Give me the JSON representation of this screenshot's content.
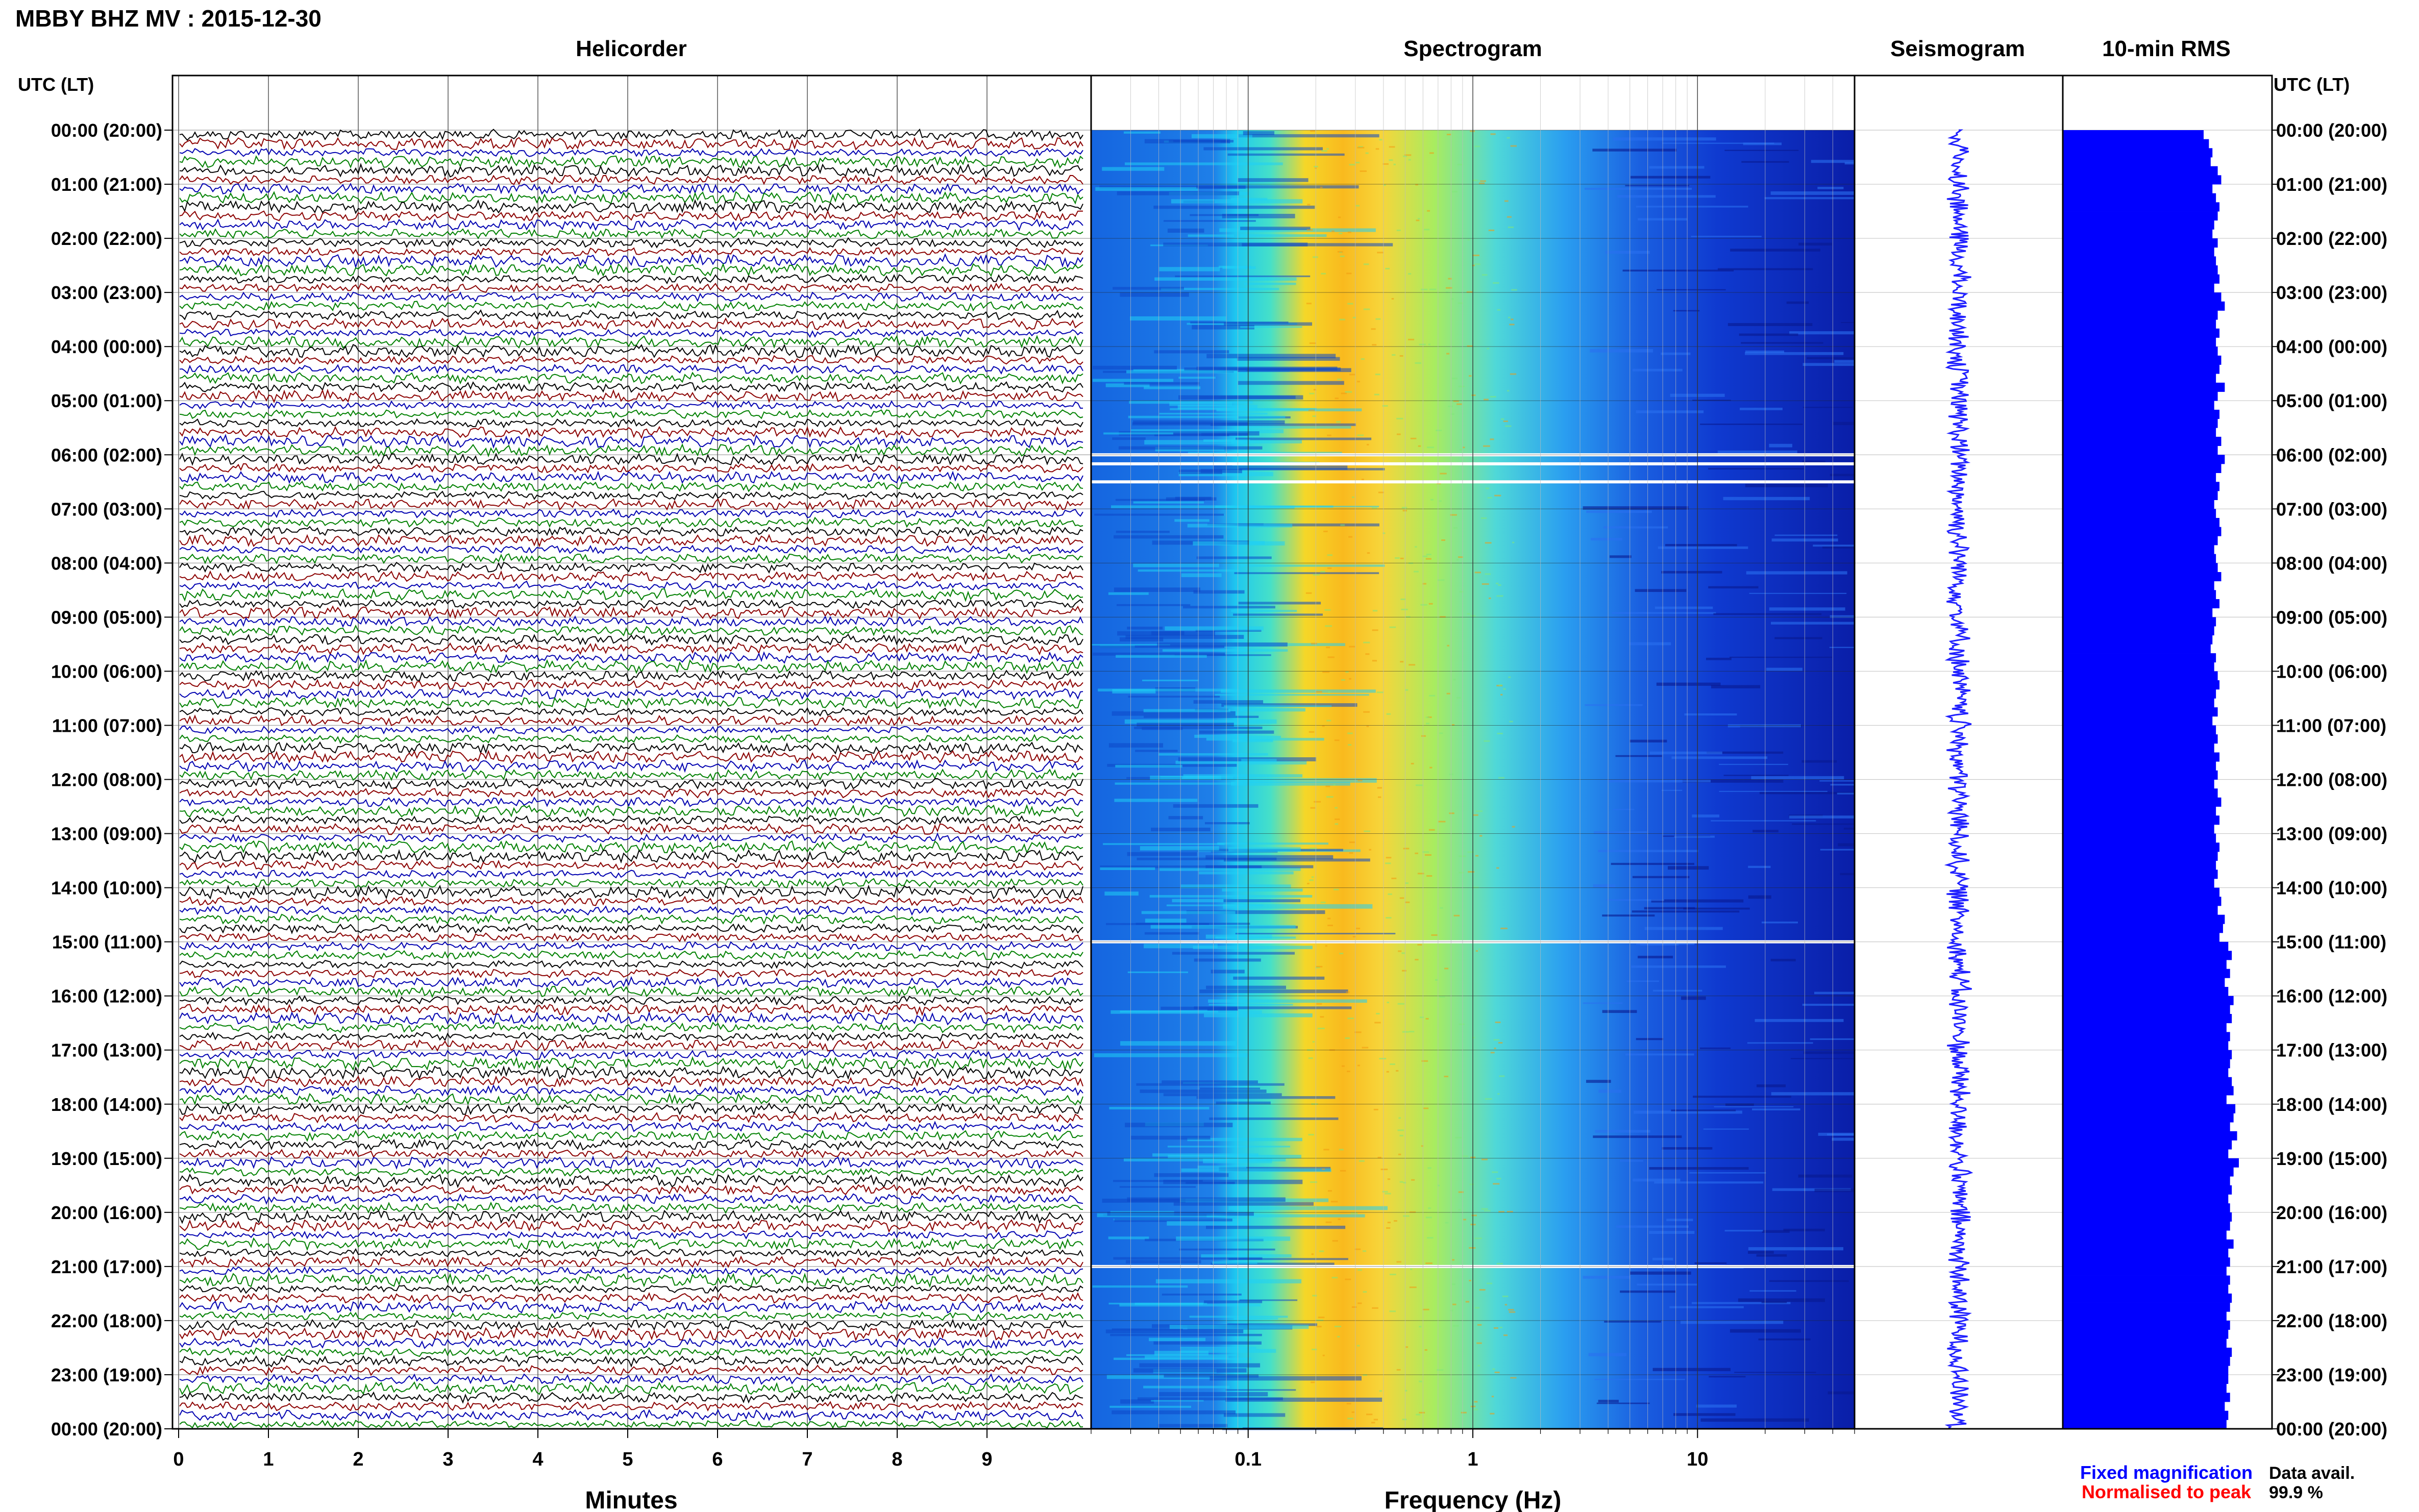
{
  "header": {
    "title": "MBBY BHZ MV : 2015-12-30"
  },
  "panels": {
    "helicorder": "Helicorder",
    "spectrogram": "Spectrogram",
    "seismogram": "Seismogram",
    "rms": "10-min RMS"
  },
  "axis_left_label": "UTC (LT)",
  "axis_right_label": "UTC (LT)",
  "footer": {
    "fixed_magnification": "Fixed magnification",
    "normalised_to_peak": "Normalised to peak",
    "data_avail_label": "Data avail.",
    "data_avail_value": "99.9 %"
  },
  "colors": {
    "trace_cycle": [
      "#000000",
      "#8b0000",
      "#0000b0",
      "#008000"
    ],
    "seismogram": "#1f1fff",
    "rms_bar": "#0000ff",
    "fixed_magnification": "#0000ff",
    "normalised_to_peak": "#ff0000",
    "gap_lines": "#ffffff"
  },
  "icons": {
    "spectrogram_colormap": "jet-colormap"
  },
  "chart_data": [
    {
      "type": "line",
      "title": "Helicorder",
      "xlabel": "Minutes",
      "ylabel": "UTC (LT)",
      "x_ticks": [
        "0",
        "1",
        "2",
        "3",
        "4",
        "5",
        "6",
        "7",
        "8",
        "9"
      ],
      "xlim": [
        0,
        10
      ],
      "y_ticks": [
        "00:00 (20:00)",
        "01:00 (21:00)",
        "02:00 (22:00)",
        "03:00 (23:00)",
        "04:00 (00:00)",
        "05:00 (01:00)",
        "06:00 (02:00)",
        "07:00 (03:00)",
        "08:00 (04:00)",
        "09:00 (05:00)",
        "10:00 (06:00)",
        "11:00 (07:00)",
        "12:00 (08:00)",
        "13:00 (09:00)",
        "14:00 (10:00)",
        "15:00 (11:00)",
        "16:00 (12:00)",
        "17:00 (13:00)",
        "18:00 (14:00)",
        "19:00 (15:00)",
        "20:00 (16:00)",
        "21:00 (17:00)",
        "22:00 (18:00)",
        "23:00 (19:00)",
        "00:00 (20:00)"
      ],
      "traces_per_hour": 6,
      "minutes_per_trace": 10
    },
    {
      "type": "heatmap",
      "title": "Spectrogram",
      "xlabel": "Frequency (Hz)",
      "x_scale": "log",
      "xlim": [
        0.02,
        50
      ],
      "x_ticks": [
        "0.1",
        "1",
        "10"
      ],
      "x_tick_values": [
        0.1,
        1,
        10
      ],
      "colormap": "jet",
      "peak_frequency_hz": 0.35,
      "data_gaps_utc": [
        "06:00",
        "06:10",
        "06:30",
        "15:00",
        "21:00"
      ]
    },
    {
      "type": "line",
      "title": "Seismogram",
      "xlabel": "",
      "ylabel": ""
    },
    {
      "type": "bar",
      "title": "10-min RMS",
      "orientation": "horizontal",
      "interval_minutes": 10,
      "values": [
        0.8,
        0.83,
        0.85,
        0.84,
        0.88,
        0.9,
        0.85,
        0.87,
        0.89,
        0.88,
        0.86,
        0.85,
        0.88,
        0.86,
        0.87,
        0.88,
        0.89,
        0.86,
        0.9,
        0.92,
        0.88,
        0.87,
        0.89,
        0.87,
        0.88,
        0.9,
        0.89,
        0.87,
        0.92,
        0.88,
        0.86,
        0.89,
        0.88,
        0.87,
        0.9,
        0.88,
        0.92,
        0.9,
        0.87,
        0.89,
        0.88,
        0.86,
        0.87,
        0.89,
        0.9,
        0.88,
        0.86,
        0.87,
        0.88,
        0.9,
        0.86,
        0.87,
        0.89,
        0.85,
        0.87,
        0.86,
        0.85,
        0.84,
        0.87,
        0.86,
        0.88,
        0.89,
        0.87,
        0.86,
        0.88,
        0.85,
        0.87,
        0.88,
        0.86,
        0.89,
        0.87,
        0.88,
        0.86,
        0.88,
        0.9,
        0.87,
        0.89,
        0.86,
        0.87,
        0.89,
        0.88,
        0.87,
        0.88,
        0.86,
        0.89,
        0.9,
        0.88,
        0.92,
        0.91,
        0.89,
        0.94,
        0.96,
        0.93,
        0.95,
        0.92,
        0.94,
        0.97,
        0.95,
        0.96,
        0.93,
        0.95,
        0.94,
        0.96,
        0.95,
        0.94,
        0.96,
        0.97,
        0.93,
        0.98,
        0.97,
        0.95,
        0.99,
        0.96,
        0.94,
        1.0,
        0.97,
        0.95,
        0.96,
        0.94,
        0.95,
        0.96,
        0.95,
        0.93,
        0.97,
        0.94,
        0.95,
        0.93,
        0.95,
        0.94,
        0.96,
        0.95,
        0.93,
        0.95,
        0.94,
        0.93,
        0.96,
        0.95,
        0.94,
        0.94,
        0.93,
        0.95,
        0.92,
        0.94,
        0.93
      ]
    }
  ]
}
